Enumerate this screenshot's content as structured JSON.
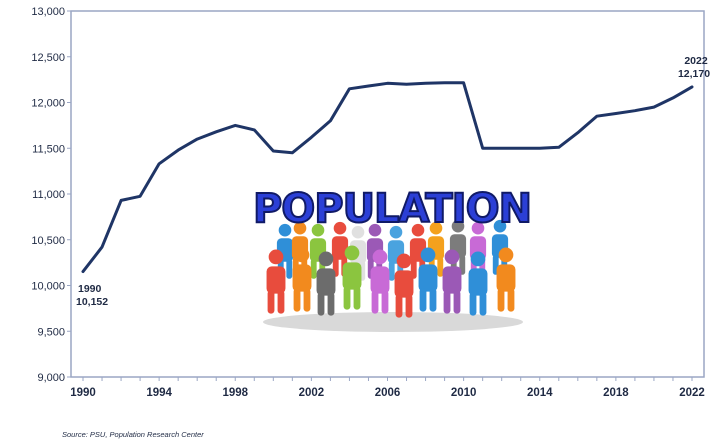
{
  "chart_data": {
    "type": "line",
    "x": [
      1990,
      1991,
      1992,
      1993,
      1994,
      1995,
      1996,
      1997,
      1998,
      1999,
      2000,
      2001,
      2002,
      2003,
      2004,
      2005,
      2006,
      2007,
      2008,
      2009,
      2010,
      2011,
      2012,
      2013,
      2014,
      2015,
      2016,
      2017,
      2018,
      2019,
      2020,
      2021,
      2022
    ],
    "series": [
      {
        "values": [
          10152,
          10420,
          10930,
          10975,
          11330,
          11480,
          11600,
          11680,
          11750,
          11700,
          11470,
          11450,
          11620,
          11800,
          12150,
          12180,
          12210,
          12200,
          12210,
          12215,
          12215,
          11500,
          11500,
          11500,
          11500,
          11510,
          11670,
          11850,
          11880,
          11910,
          11950,
          12050,
          12170
        ]
      }
    ],
    "ylim": [
      9000,
      13000
    ],
    "yticks": [
      "9,000",
      "9,500",
      "10,000",
      "10,500",
      "11,000",
      "11,500",
      "12,000",
      "12,500",
      "13,000"
    ],
    "xticks": [
      "1990",
      "1994",
      "1998",
      "2002",
      "2006",
      "2010",
      "2014",
      "2018",
      "2022"
    ],
    "annotations": [
      {
        "year_label": "1990",
        "value_label": "10,152"
      },
      {
        "year_label": "2022",
        "value_label": "12,170"
      }
    ],
    "line_color": "#1f3566",
    "axis_color": "#9aa6c4"
  },
  "overlay": {
    "image_text": "POPULATION"
  },
  "source": "Source: PSU, Population Research Center"
}
